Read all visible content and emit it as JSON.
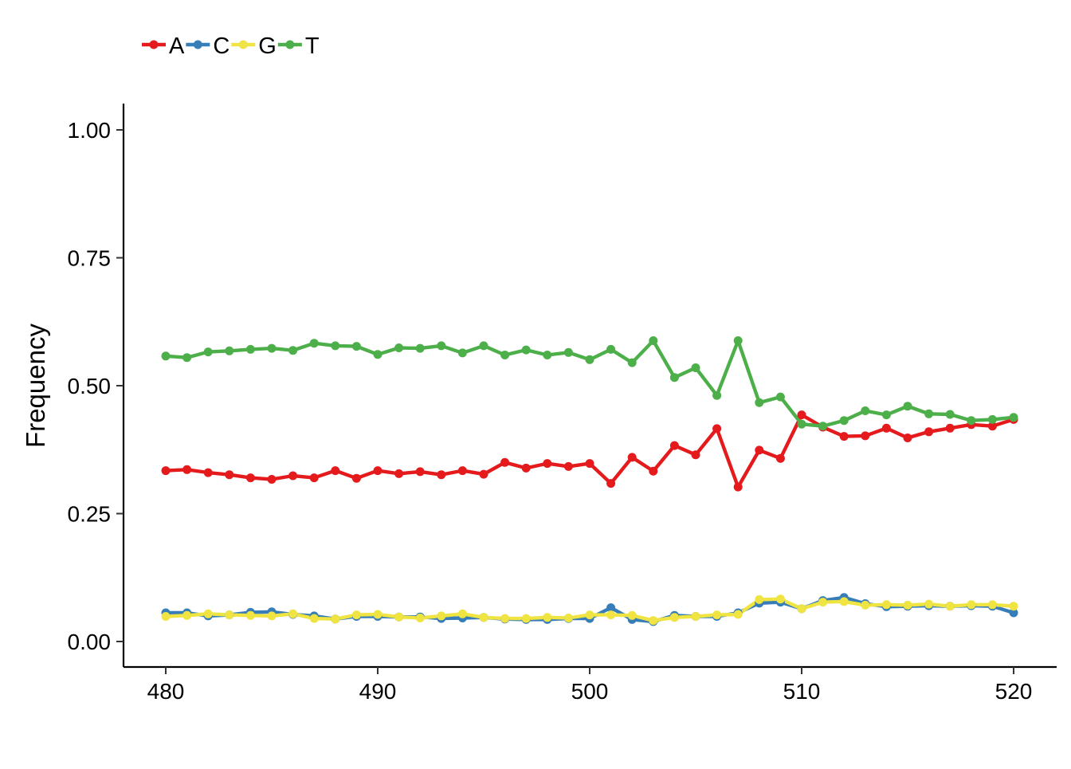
{
  "chart_data": {
    "type": "line",
    "title": "",
    "xlabel": "",
    "ylabel": "Frequency",
    "xlim": [
      478,
      522
    ],
    "ylim": [
      -0.05,
      1.05
    ],
    "x_ticks": [
      480,
      490,
      500,
      510,
      520
    ],
    "y_ticks": [
      0.0,
      0.25,
      0.5,
      0.75,
      1.0
    ],
    "x_tick_labels": [
      "480",
      "490",
      "500",
      "510",
      "520"
    ],
    "y_tick_labels": [
      "0.00",
      "0.25",
      "0.50",
      "0.75",
      "1.00"
    ],
    "grid": false,
    "legend_position": "top-left",
    "x": [
      480,
      481,
      482,
      483,
      484,
      485,
      486,
      487,
      488,
      489,
      490,
      491,
      492,
      493,
      494,
      495,
      496,
      497,
      498,
      499,
      500,
      501,
      502,
      503,
      504,
      505,
      506,
      507,
      508,
      509,
      510,
      511,
      512,
      513,
      514,
      515,
      516,
      517,
      518,
      519,
      520
    ],
    "series": [
      {
        "name": "A",
        "color": "#e41a1c",
        "values": [
          0.334,
          0.336,
          0.33,
          0.326,
          0.32,
          0.317,
          0.324,
          0.32,
          0.334,
          0.319,
          0.334,
          0.328,
          0.332,
          0.326,
          0.334,
          0.327,
          0.35,
          0.339,
          0.348,
          0.342,
          0.348,
          0.309,
          0.36,
          0.333,
          0.383,
          0.365,
          0.416,
          0.302,
          0.374,
          0.358,
          0.443,
          0.419,
          0.401,
          0.402,
          0.417,
          0.398,
          0.41,
          0.417,
          0.424,
          0.421,
          0.434
        ]
      },
      {
        "name": "C",
        "color": "#377eb8",
        "values": [
          0.056,
          0.056,
          0.05,
          0.052,
          0.057,
          0.058,
          0.053,
          0.05,
          0.044,
          0.049,
          0.049,
          0.048,
          0.048,
          0.045,
          0.046,
          0.047,
          0.044,
          0.043,
          0.043,
          0.045,
          0.045,
          0.066,
          0.043,
          0.039,
          0.051,
          0.049,
          0.049,
          0.056,
          0.075,
          0.077,
          0.064,
          0.08,
          0.086,
          0.074,
          0.068,
          0.069,
          0.07,
          0.069,
          0.07,
          0.069,
          0.056
        ]
      },
      {
        "name": "G",
        "color": "#f0e442",
        "values": [
          0.049,
          0.051,
          0.054,
          0.052,
          0.051,
          0.05,
          0.054,
          0.045,
          0.044,
          0.052,
          0.053,
          0.048,
          0.046,
          0.05,
          0.054,
          0.047,
          0.045,
          0.045,
          0.047,
          0.046,
          0.052,
          0.052,
          0.051,
          0.041,
          0.047,
          0.049,
          0.052,
          0.053,
          0.082,
          0.083,
          0.064,
          0.077,
          0.078,
          0.071,
          0.072,
          0.071,
          0.073,
          0.069,
          0.072,
          0.072,
          0.069
        ]
      },
      {
        "name": "T",
        "color": "#4daf4a",
        "values": [
          0.558,
          0.555,
          0.566,
          0.568,
          0.571,
          0.573,
          0.569,
          0.583,
          0.578,
          0.577,
          0.561,
          0.574,
          0.573,
          0.578,
          0.564,
          0.578,
          0.56,
          0.57,
          0.56,
          0.565,
          0.551,
          0.571,
          0.545,
          0.588,
          0.516,
          0.535,
          0.481,
          0.588,
          0.467,
          0.478,
          0.425,
          0.421,
          0.432,
          0.451,
          0.443,
          0.46,
          0.445,
          0.444,
          0.432,
          0.434,
          0.438
        ]
      }
    ]
  }
}
